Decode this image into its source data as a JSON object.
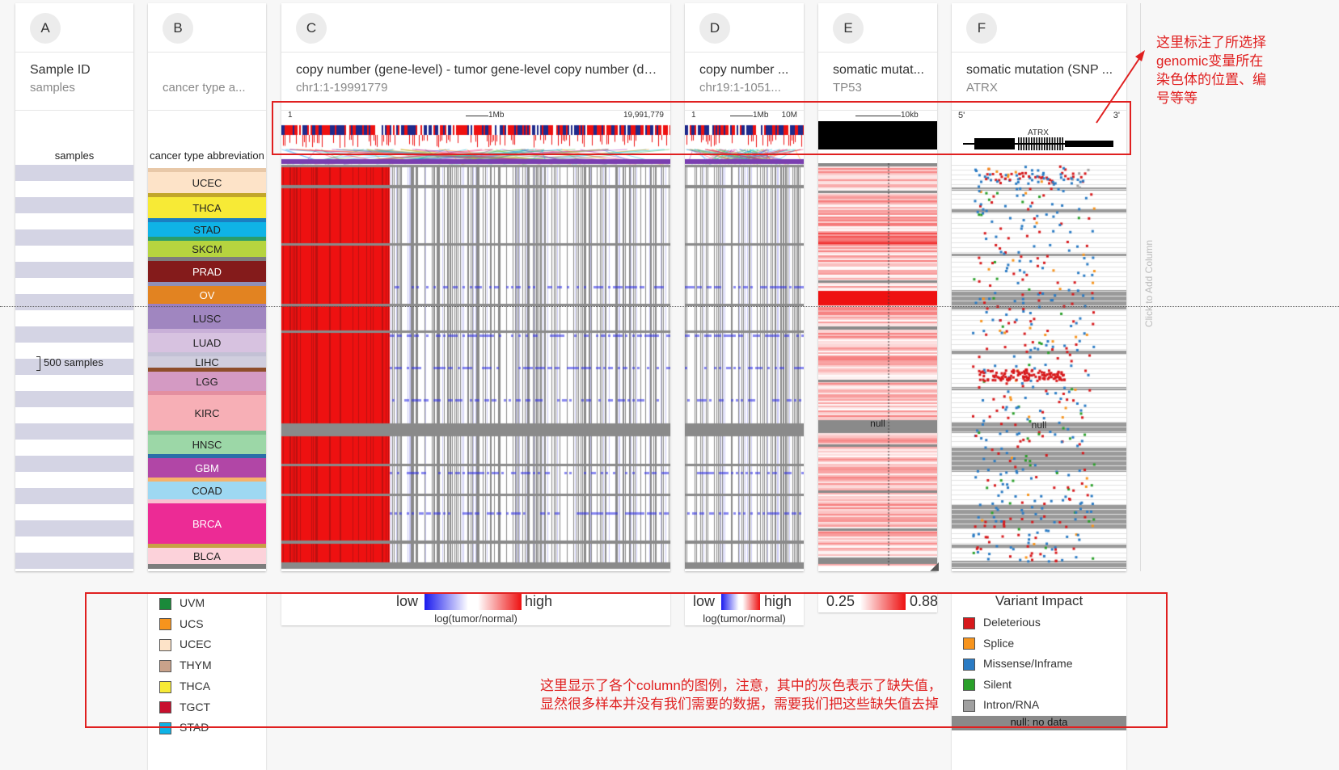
{
  "columns": {
    "a": {
      "badge": "A",
      "title": "Sample ID",
      "sub": "samples",
      "axis": "samples",
      "count_label": "500 samples"
    },
    "b": {
      "badge": "B",
      "title": "",
      "sub": "cancer type a...",
      "axis": "cancer type abbreviation"
    },
    "c": {
      "badge": "C",
      "title": "copy number (gene-level) - tumor gene-level copy number (del...",
      "sub": "chr1:1-19991779",
      "pos_start": "1",
      "pos_end": "19,991,779",
      "scale": "1Mb"
    },
    "d": {
      "badge": "D",
      "title": "copy number ...",
      "sub": "chr19:1-1051...",
      "pos_start": "1",
      "scale": "1Mb",
      "pos_end": "10M"
    },
    "e": {
      "badge": "E",
      "title": "somatic mutat...",
      "sub": "TP53",
      "scale": "10kb",
      "null_label": "null"
    },
    "f": {
      "badge": "F",
      "title": "somatic mutation (SNP ...",
      "sub": "ATRX",
      "five": "5'",
      "three": "3'",
      "gene": "ATRX",
      "null_label": "null"
    }
  },
  "cancer_types": [
    {
      "label": "UCEC",
      "color": "#fde3c8",
      "bar": "#e8c8a8"
    },
    {
      "label": "THCA",
      "color": "#f7ea36",
      "bar": "#c2a62a"
    },
    {
      "label": "STAD",
      "color": "#0fb3e6",
      "bar": "#1a7fc2"
    },
    {
      "label": "SKCM",
      "color": "#b6d43f",
      "bar": "#2a9d6a"
    },
    {
      "label": "PRAD",
      "color": "#841b1b",
      "bar": "#7d7d7d"
    },
    {
      "label": "OV",
      "color": "#e28321",
      "bar": "#8f8fb8"
    },
    {
      "label": "LUSC",
      "color": "#a086c0",
      "bar": "#9b7fc0"
    },
    {
      "label": "LUAD",
      "color": "#d7c2e0",
      "bar": "#c9b0d8"
    },
    {
      "label": "LIHC",
      "color": "#d0cede",
      "bar": "#c3c1d5"
    },
    {
      "label": "LGG",
      "color": "#d49ac3",
      "bar": "#8e4e2b"
    },
    {
      "label": "KIRC",
      "color": "#f7afb6",
      "bar": "#e48fa0"
    },
    {
      "label": "HNSC",
      "color": "#9cd7a7",
      "bar": "#83c292"
    },
    {
      "label": "GBM",
      "color": "#b146a6",
      "bar": "#2b6fa8"
    },
    {
      "label": "COAD",
      "color": "#9ed8f2",
      "bar": "#f6b26b"
    },
    {
      "label": "BRCA",
      "color": "#ec2b95",
      "bar": "#f9c0d0"
    },
    {
      "label": "BLCA",
      "color": "#fcd2da",
      "bar": "#c7a046"
    }
  ],
  "legend_b": [
    {
      "label": "UVM",
      "color": "#1a8a3a"
    },
    {
      "label": "UCS",
      "color": "#f7941d"
    },
    {
      "label": "UCEC",
      "color": "#fde3c8"
    },
    {
      "label": "THYM",
      "color": "#c9a28a"
    },
    {
      "label": "THCA",
      "color": "#f7ea36"
    },
    {
      "label": "TGCT",
      "color": "#c8102e"
    },
    {
      "label": "STAD",
      "color": "#0fb3e6"
    }
  ],
  "legend_c": {
    "low": "low",
    "high": "high",
    "caption": "log(tumor/normal)"
  },
  "legend_d": {
    "low": "low",
    "high": "high",
    "caption": "log(tumor/normal)"
  },
  "legend_e": {
    "min": "0.25",
    "max": "0.88"
  },
  "legend_f": {
    "title": "Variant Impact",
    "items": [
      {
        "label": "Deleterious",
        "color": "#d7191c"
      },
      {
        "label": "Splice",
        "color": "#f7941d"
      },
      {
        "label": "Missense/Inframe",
        "color": "#2a7bc4"
      },
      {
        "label": "Silent",
        "color": "#2aa02a"
      },
      {
        "label": "Intron/RNA",
        "color": "#a0a0a0"
      }
    ],
    "null": "null: no data"
  },
  "add_column": "Click to Add Column",
  "annotation_top": "这里标注了所选择genomic变量所在染色体的位置、编号等等",
  "annotation_bottom": "这里显示了各个column的图例，注意，其中的灰色表示了缺失值，显然很多样本并没有我们需要的数据，需要我们把这些缺失值去掉",
  "colors": {
    "red": "#ee1111",
    "blue": "#1a1aee",
    "gray": "#8a8a8a",
    "annotation": "#e02020"
  }
}
